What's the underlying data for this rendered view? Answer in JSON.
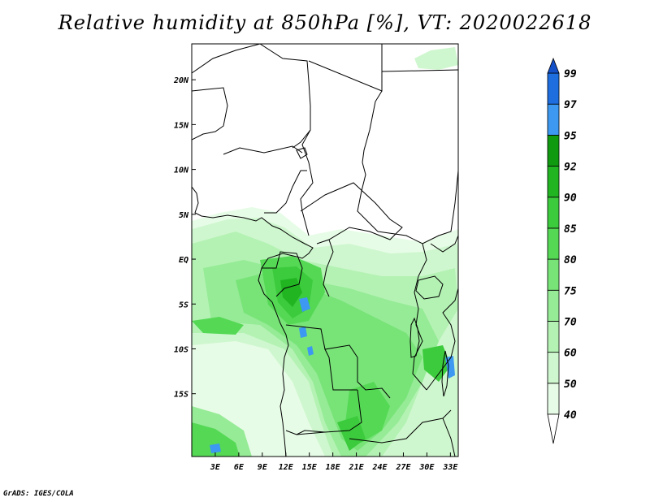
{
  "title": "Relative humidity at 850hPa [%], VT: 2020022618",
  "credit": "GrADS: IGES/COLA",
  "map": {
    "lon_range": [
      0,
      34
    ],
    "lat_range": [
      -22,
      24
    ],
    "x_ticks": [
      "3E",
      "6E",
      "9E",
      "12E",
      "15E",
      "18E",
      "21E",
      "24E",
      "27E",
      "30E",
      "33E"
    ],
    "x_tick_values": [
      3,
      6,
      9,
      12,
      15,
      18,
      21,
      24,
      27,
      30,
      33
    ],
    "y_ticks": [
      "20N",
      "15N",
      "10N",
      "5N",
      "EQ",
      "5S",
      "10S",
      "15S"
    ],
    "y_tick_values": [
      20,
      15,
      10,
      5,
      0,
      -5,
      -10,
      -15
    ]
  },
  "colorbar": {
    "levels": [
      "40",
      "50",
      "60",
      "70",
      "75",
      "80",
      "85",
      "90",
      "92",
      "95",
      "97",
      "99"
    ],
    "colors": [
      "#ffffff",
      "#e7fce7",
      "#cff7cf",
      "#b4f2b4",
      "#96eb96",
      "#78e478",
      "#55d955",
      "#3ccb3c",
      "#22b522",
      "#109a10",
      "#3c98f0",
      "#1e6ee0",
      "#1450c8"
    ]
  },
  "colors": {
    "coast": "#000000",
    "axes": "#000000"
  }
}
